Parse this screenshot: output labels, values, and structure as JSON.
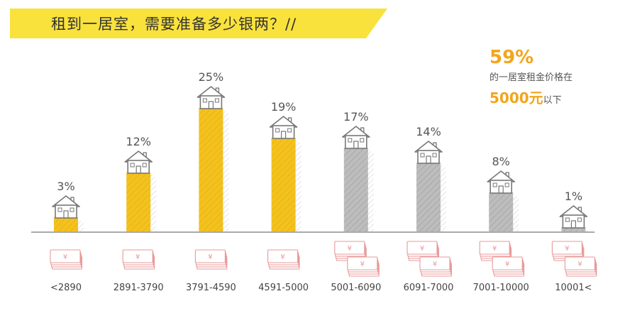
{
  "header": {
    "title": "租到一居室，需要准备多少银两？//"
  },
  "callout": {
    "percent": "59%",
    "line1": "的一居室租金价格在",
    "amount": "5000元",
    "suffix": "以下"
  },
  "colors": {
    "banner": "#f9e23c",
    "highlight": "#f4c21f",
    "muted": "#bdbdbd",
    "accent": "#f3a51c",
    "money": "#e89a9a"
  },
  "chart_data": {
    "type": "bar",
    "categories": [
      "<2890",
      "2891-3790",
      "3791-4590",
      "4591-5000",
      "5001-6090",
      "6091-7000",
      "7001-10000",
      "10001<"
    ],
    "values": [
      3,
      12,
      25,
      19,
      17,
      14,
      8,
      1
    ],
    "labels": [
      "3%",
      "12%",
      "25%",
      "19%",
      "17%",
      "14%",
      "8%",
      "1%"
    ],
    "unit": "%",
    "highlighted": [
      true,
      true,
      true,
      true,
      false,
      false,
      false,
      false
    ],
    "money_stacks": [
      1,
      1,
      1,
      1,
      2,
      2,
      2,
      2
    ],
    "bar_icon": "house-icon",
    "category_icon": "money-stack-icon",
    "grid": false
  }
}
